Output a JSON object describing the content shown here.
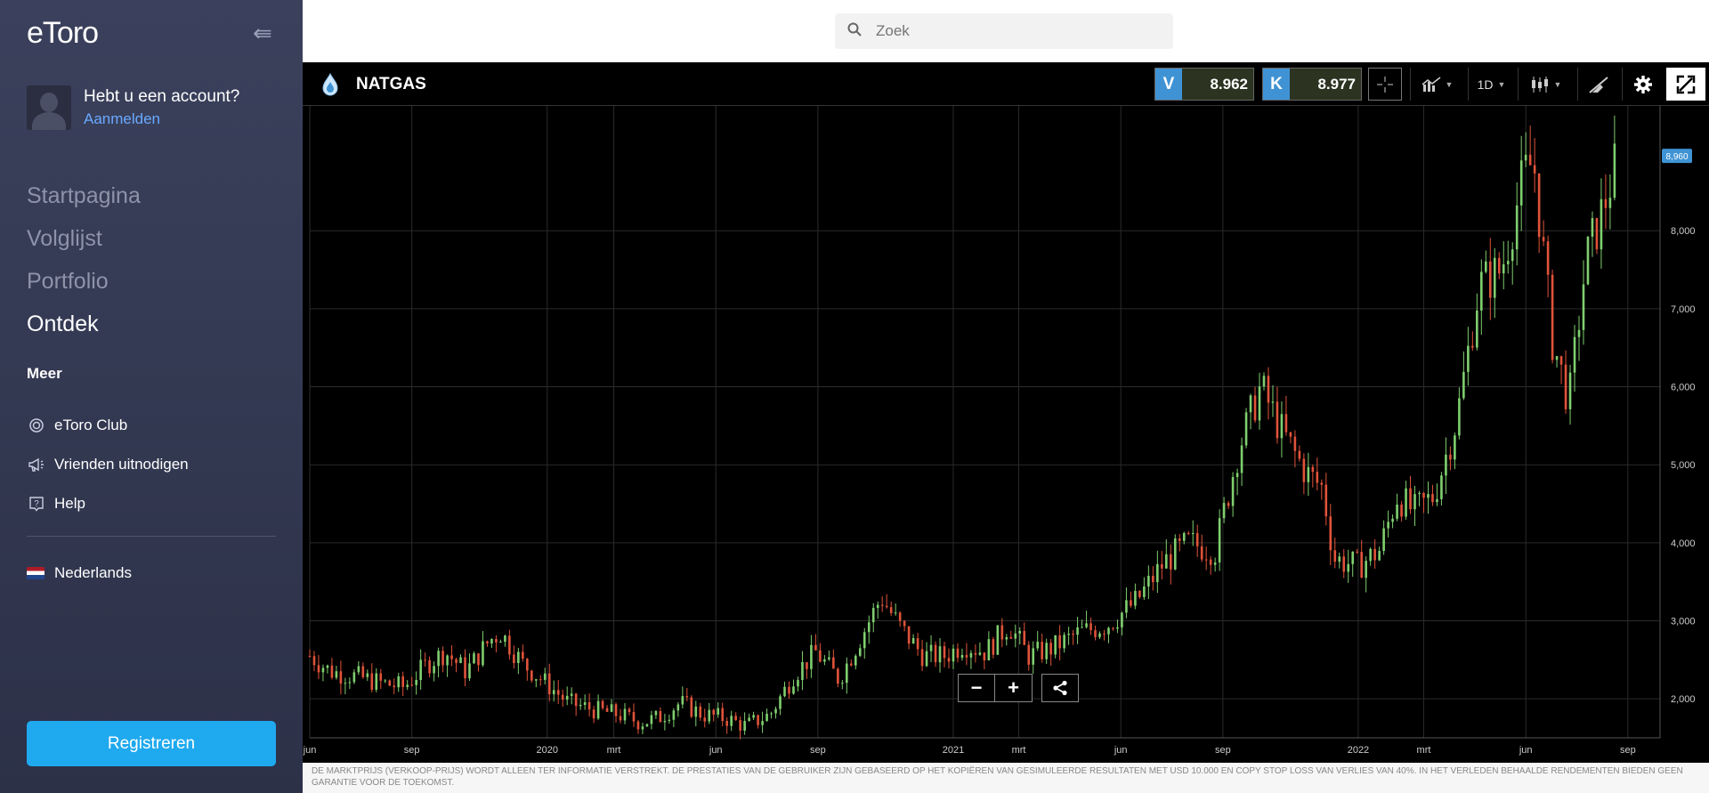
{
  "sidebar": {
    "logo": "eToro",
    "account_question": "Hebt u een account?",
    "login_link": "Aanmelden",
    "nav": [
      "Startpagina",
      "Volglijst",
      "Portfolio",
      "Ontdek"
    ],
    "nav_active": "Ontdek",
    "more_heading": "Meer",
    "more_items": [
      {
        "label": "eToro Club",
        "icon": "club-icon"
      },
      {
        "label": "Vrienden uitnodigen",
        "icon": "megaphone-icon"
      },
      {
        "label": "Help",
        "icon": "help-icon"
      }
    ],
    "language": "Nederlands",
    "register_button": "Registreren"
  },
  "search": {
    "placeholder": "Zoek"
  },
  "instrument": {
    "name": "NATGAS",
    "sell_label": "V",
    "sell_price": "8.962",
    "buy_label": "K",
    "buy_price": "8.977",
    "timeframe": "1D"
  },
  "chart_data": {
    "type": "candlestick",
    "title": "",
    "current_price_label": "8,960",
    "y_ticks": [
      "8,000",
      "7,000",
      "6,000",
      "5,000",
      "4,000",
      "3,000",
      "2,000"
    ],
    "y_range": [
      1.5,
      9.6
    ],
    "x_ticks": [
      "jun",
      "sep",
      "2020",
      "mrt",
      "jun",
      "sep",
      "2021",
      "mrt",
      "jun",
      "sep",
      "2022",
      "mrt",
      "jun",
      "sep"
    ],
    "x_range": [
      "2019-06-01",
      "2022-09-30"
    ],
    "grid": true,
    "series_outline": [
      [
        "2019-06-01",
        2.55
      ],
      [
        "2019-06-20",
        2.35
      ],
      [
        "2019-07-15",
        2.28
      ],
      [
        "2019-08-05",
        2.2
      ],
      [
        "2019-08-25",
        2.15
      ],
      [
        "2019-09-15",
        2.45
      ],
      [
        "2019-10-01",
        2.6
      ],
      [
        "2019-10-20",
        2.35
      ],
      [
        "2019-11-10",
        2.75
      ],
      [
        "2019-11-20",
        2.85
      ],
      [
        "2019-12-10",
        2.45
      ],
      [
        "2019-12-31",
        2.2
      ],
      [
        "2020-01-20",
        1.95
      ],
      [
        "2020-02-15",
        1.85
      ],
      [
        "2020-03-05",
        1.8
      ],
      [
        "2020-03-25",
        1.7
      ],
      [
        "2020-04-10",
        1.75
      ],
      [
        "2020-04-30",
        1.95
      ],
      [
        "2020-05-20",
        1.8
      ],
      [
        "2020-06-10",
        1.75
      ],
      [
        "2020-06-28",
        1.65
      ],
      [
        "2020-07-20",
        1.8
      ],
      [
        "2020-08-10",
        2.3
      ],
      [
        "2020-08-30",
        2.6
      ],
      [
        "2020-09-20",
        2.25
      ],
      [
        "2020-10-10",
        2.8
      ],
      [
        "2020-10-28",
        3.3
      ],
      [
        "2020-11-15",
        2.9
      ],
      [
        "2020-12-05",
        2.55
      ],
      [
        "2020-12-25",
        2.55
      ],
      [
        "2021-01-10",
        2.7
      ],
      [
        "2021-01-30",
        2.6
      ],
      [
        "2021-02-20",
        2.95
      ],
      [
        "2021-03-10",
        2.55
      ],
      [
        "2021-03-31",
        2.65
      ],
      [
        "2021-04-25",
        2.85
      ],
      [
        "2021-05-20",
        2.95
      ],
      [
        "2021-06-15",
        3.25
      ],
      [
        "2021-07-10",
        3.75
      ],
      [
        "2021-08-01",
        4.0
      ],
      [
        "2021-08-25",
        3.9
      ],
      [
        "2021-09-15",
        5.2
      ],
      [
        "2021-10-05",
        6.0
      ],
      [
        "2021-10-25",
        5.4
      ],
      [
        "2021-11-15",
        4.9
      ],
      [
        "2021-11-30",
        4.7
      ],
      [
        "2021-12-10",
        3.8
      ],
      [
        "2021-12-31",
        3.7
      ],
      [
        "2022-01-20",
        3.9
      ],
      [
        "2022-02-05",
        4.6
      ],
      [
        "2022-02-20",
        4.4
      ],
      [
        "2022-03-10",
        4.6
      ],
      [
        "2022-03-31",
        5.6
      ],
      [
        "2022-04-20",
        7.3
      ],
      [
        "2022-05-10",
        7.5
      ],
      [
        "2022-05-30",
        8.7
      ],
      [
        "2022-06-08",
        8.9
      ],
      [
        "2022-06-25",
        6.6
      ],
      [
        "2022-07-10",
        5.8
      ],
      [
        "2022-07-25",
        7.6
      ],
      [
        "2022-08-10",
        8.3
      ],
      [
        "2022-08-22",
        8.9
      ]
    ]
  },
  "disclaimer": "DE MARKTPRIJS (VERKOOP-PRIJS) WORDT ALLEEN TER INFORMATIE VERSTREKT. DE PRESTATIES VAN DE GEBRUIKER ZIJN GEBASEERD OP HET KOPIËREN VAN GESIMULEERDE RESULTATEN MET USD 10.000 EN COPY STOP LOSS VAN VERLIES VAN 40%. IN HET VERLEDEN BEHAALDE RENDEMENTEN BIEDEN GEEN GARANTIE VOOR DE TOEKOMST."
}
